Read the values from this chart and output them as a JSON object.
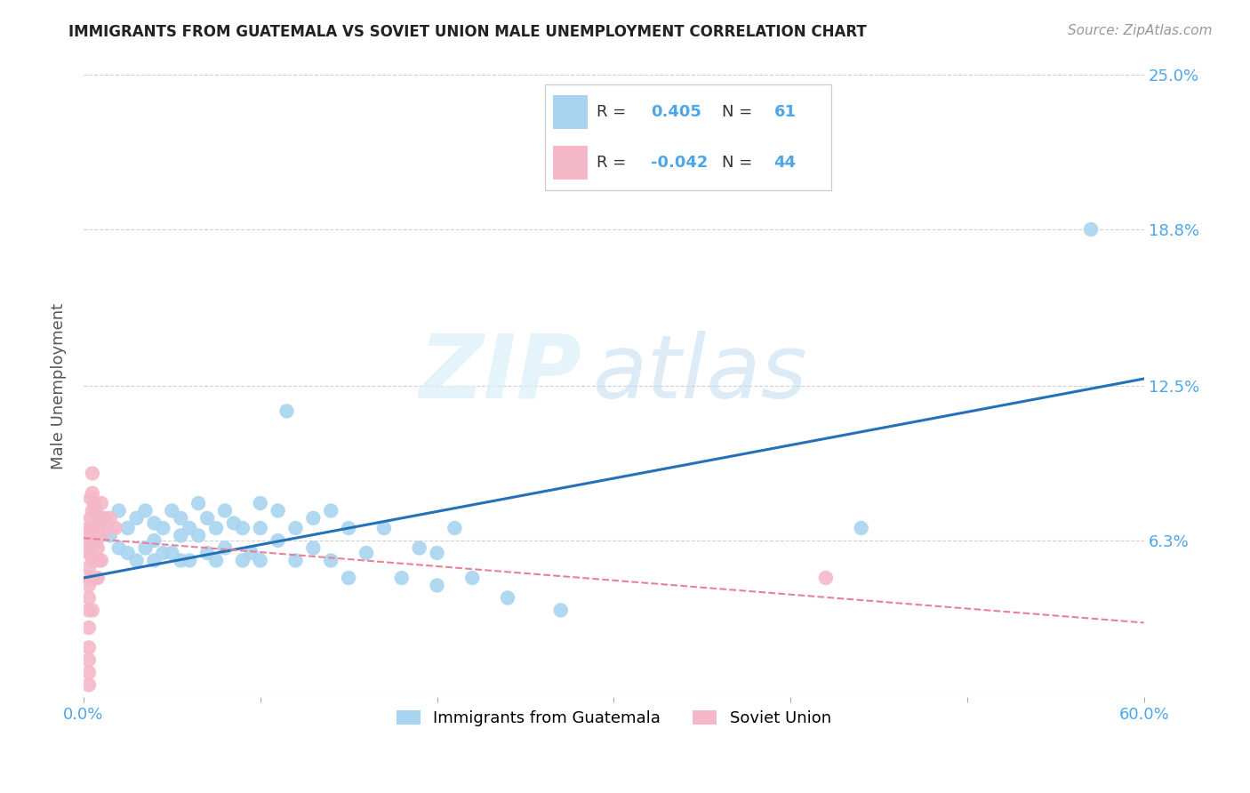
{
  "title": "IMMIGRANTS FROM GUATEMALA VS SOVIET UNION MALE UNEMPLOYMENT CORRELATION CHART",
  "source": "Source: ZipAtlas.com",
  "ylabel": "Male Unemployment",
  "xlim": [
    0.0,
    0.6
  ],
  "ylim": [
    0.0,
    0.25
  ],
  "yticks": [
    0.0,
    0.063,
    0.125,
    0.188,
    0.25
  ],
  "ytick_labels": [
    "",
    "6.3%",
    "12.5%",
    "18.8%",
    "25.0%"
  ],
  "xticks": [
    0.0,
    0.1,
    0.2,
    0.3,
    0.4,
    0.5,
    0.6
  ],
  "xtick_labels": [
    "0.0%",
    "",
    "",
    "",
    "",
    "",
    "60.0%"
  ],
  "color_guatemala": "#a8d4f0",
  "color_soviet": "#f5b8c8",
  "color_trendline_guatemala": "#2471b8",
  "color_trendline_soviet": "#e8809a",
  "watermark_zip": "ZIP",
  "watermark_atlas": "atlas",
  "guatemala_x": [
    0.005,
    0.01,
    0.015,
    0.02,
    0.02,
    0.025,
    0.025,
    0.03,
    0.03,
    0.035,
    0.035,
    0.04,
    0.04,
    0.04,
    0.045,
    0.045,
    0.05,
    0.05,
    0.055,
    0.055,
    0.055,
    0.06,
    0.06,
    0.065,
    0.065,
    0.07,
    0.07,
    0.075,
    0.075,
    0.08,
    0.08,
    0.085,
    0.09,
    0.09,
    0.095,
    0.1,
    0.1,
    0.1,
    0.11,
    0.11,
    0.115,
    0.12,
    0.12,
    0.13,
    0.13,
    0.14,
    0.14,
    0.15,
    0.15,
    0.16,
    0.17,
    0.18,
    0.19,
    0.2,
    0.2,
    0.21,
    0.22,
    0.24,
    0.27,
    0.44,
    0.57
  ],
  "guatemala_y": [
    0.068,
    0.072,
    0.065,
    0.075,
    0.06,
    0.068,
    0.058,
    0.072,
    0.055,
    0.075,
    0.06,
    0.07,
    0.063,
    0.055,
    0.068,
    0.058,
    0.075,
    0.058,
    0.072,
    0.065,
    0.055,
    0.068,
    0.055,
    0.078,
    0.065,
    0.072,
    0.058,
    0.068,
    0.055,
    0.075,
    0.06,
    0.07,
    0.068,
    0.055,
    0.058,
    0.078,
    0.068,
    0.055,
    0.075,
    0.063,
    0.115,
    0.068,
    0.055,
    0.072,
    0.06,
    0.075,
    0.055,
    0.068,
    0.048,
    0.058,
    0.068,
    0.048,
    0.06,
    0.058,
    0.045,
    0.068,
    0.048,
    0.04,
    0.035,
    0.068,
    0.188
  ],
  "soviet_x": [
    0.003,
    0.003,
    0.003,
    0.003,
    0.003,
    0.003,
    0.003,
    0.003,
    0.003,
    0.003,
    0.003,
    0.003,
    0.004,
    0.004,
    0.004,
    0.004,
    0.004,
    0.005,
    0.005,
    0.005,
    0.005,
    0.005,
    0.005,
    0.005,
    0.005,
    0.006,
    0.006,
    0.006,
    0.007,
    0.007,
    0.007,
    0.008,
    0.008,
    0.008,
    0.009,
    0.009,
    0.01,
    0.01,
    0.01,
    0.012,
    0.013,
    0.015,
    0.018,
    0.42
  ],
  "soviet_y": [
    0.068,
    0.062,
    0.058,
    0.052,
    0.045,
    0.04,
    0.035,
    0.028,
    0.02,
    0.015,
    0.01,
    0.005,
    0.08,
    0.072,
    0.065,
    0.058,
    0.048,
    0.09,
    0.082,
    0.075,
    0.068,
    0.062,
    0.055,
    0.048,
    0.035,
    0.078,
    0.065,
    0.055,
    0.075,
    0.062,
    0.048,
    0.072,
    0.06,
    0.048,
    0.07,
    0.055,
    0.078,
    0.065,
    0.055,
    0.072,
    0.068,
    0.072,
    0.068,
    0.048
  ],
  "trendline_guat_x0": 0.0,
  "trendline_guat_x1": 0.6,
  "trendline_guat_y0": 0.048,
  "trendline_guat_y1": 0.128,
  "trendline_sov_x0": 0.0,
  "trendline_sov_x1": 0.6,
  "trendline_sov_y0": 0.064,
  "trendline_sov_y1": 0.03
}
